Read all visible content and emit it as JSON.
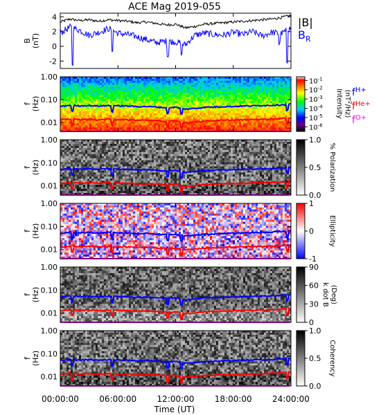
{
  "chart_data": [
    {
      "type": "line",
      "panel": "B",
      "title": "ACE Mag 2019-055",
      "ylabel": "B",
      "yunit": "(nT)",
      "ylim": [
        -3,
        4.5
      ],
      "yticks": [
        "4",
        "2",
        "0",
        "-2"
      ],
      "ytick_values": [
        4,
        2,
        0,
        -2
      ],
      "x": [
        0,
        1,
        2,
        3,
        4,
        5,
        6,
        7,
        8,
        9,
        10,
        11,
        12,
        13,
        14,
        15,
        16,
        17,
        18,
        19,
        20,
        21,
        22,
        23,
        24
      ],
      "series": [
        {
          "name": "|B|",
          "color": "#000000",
          "values": [
            3.3,
            3.7,
            3.5,
            3.6,
            3.4,
            3.6,
            3.5,
            3.4,
            3.2,
            3.3,
            3.1,
            2.9,
            3.0,
            2.5,
            2.7,
            3.0,
            3.1,
            3.2,
            3.3,
            3.4,
            3.5,
            3.6,
            3.7,
            3.9,
            4.2
          ]
        },
        {
          "name": "B",
          "subscript": "R",
          "color": "#0000ff",
          "values": [
            1.8,
            2.6,
            2.2,
            1.5,
            1.9,
            2.4,
            1.8,
            1.6,
            1.3,
            0.9,
            0.5,
            0.7,
            0.6,
            0.2,
            1.5,
            1.8,
            1.6,
            1.5,
            1.9,
            1.6,
            2.0,
            1.4,
            1.9,
            1.7,
            2.5
          ]
        }
      ],
      "dips": [
        {
          "x": 1.3,
          "value": -2.6
        },
        {
          "x": 5.4,
          "value": -0.8
        },
        {
          "x": 11.2,
          "value": -1.5
        },
        {
          "x": 12.6,
          "value": -1.2
        },
        {
          "x": 22.8,
          "value": 0.1
        },
        {
          "x": 23.6,
          "value": -2.3
        }
      ]
    },
    {
      "type": "heatmap",
      "panel": "Intensity",
      "ylabel": "f",
      "yunit": "(Hz)",
      "ylim": [
        0.004,
        1.0
      ],
      "yscale": "log",
      "yticks": [
        "1.00",
        "0.10",
        "0.01"
      ],
      "ytick_values": [
        1.0,
        0.1,
        0.01
      ],
      "colorbar": {
        "label": "Intensity",
        "unit_base": "(nT",
        "unit_exp": "2",
        "unit_tail": "/Hz)",
        "ticks": [
          {
            "mantissa": "10",
            "exp": "-1",
            "value": -1
          },
          {
            "mantissa": "10",
            "exp": "-2",
            "value": -2
          },
          {
            "mantissa": "10",
            "exp": "-3",
            "value": -3
          },
          {
            "mantissa": "10",
            "exp": "-4",
            "value": -4
          },
          {
            "mantissa": "10",
            "exp": "-5",
            "value": -5
          },
          {
            "mantissa": "10",
            "exp": "-6",
            "value": -6
          }
        ],
        "range": [
          -6.5,
          -0.6
        ],
        "colors": [
          "#000000",
          "#6b0080",
          "#0000ff",
          "#00c8ff",
          "#00ff00",
          "#ffff00",
          "#ff8000",
          "#ff0000",
          "#ffffff"
        ]
      }
    },
    {
      "type": "heatmap",
      "panel": "Polarization",
      "ylabel": "f",
      "yunit": "(Hz)",
      "ylim": [
        0.004,
        1.0
      ],
      "yscale": "log",
      "yticks": [
        "1.00",
        "0.10",
        "0.01"
      ],
      "ytick_values": [
        1.0,
        0.1,
        0.01
      ],
      "colorbar": {
        "label": "% Polarization",
        "ticks": [
          "1.0",
          "0.5",
          "0.0"
        ],
        "tick_values": [
          1.0,
          0.5,
          0.0
        ],
        "range": [
          0,
          1
        ],
        "colors": [
          "#ffffff",
          "#000000"
        ]
      }
    },
    {
      "type": "heatmap",
      "panel": "Ellipticity",
      "ylabel": "f",
      "yunit": "(Hz)",
      "ylim": [
        0.004,
        1.0
      ],
      "yscale": "log",
      "yticks": [
        "1.00",
        "0.10",
        "0.01"
      ],
      "ytick_values": [
        1.0,
        0.1,
        0.01
      ],
      "colorbar": {
        "label": "Ellipticity",
        "ticks": [
          "1",
          "0",
          "-1"
        ],
        "tick_values": [
          1,
          0,
          -1
        ],
        "range": [
          -1,
          1
        ],
        "colors": [
          "#0000ff",
          "#ffffff",
          "#ff0000"
        ]
      }
    },
    {
      "type": "heatmap",
      "panel": "k dot B",
      "ylabel": "f",
      "yunit": "(Hz)",
      "ylim": [
        0.004,
        1.0
      ],
      "yscale": "log",
      "yticks": [
        "1.00",
        "0.10",
        "0.01"
      ],
      "ytick_values": [
        1.0,
        0.1,
        0.01
      ],
      "colorbar": {
        "label": "k dot B",
        "unit": "(Deg)",
        "ticks": [
          "90",
          "60",
          "30",
          "0"
        ],
        "tick_values": [
          90,
          60,
          30,
          0
        ],
        "range": [
          0,
          90
        ],
        "colors": [
          "#ffffff",
          "#000000"
        ]
      }
    },
    {
      "type": "heatmap",
      "panel": "Coherency",
      "ylabel": "f",
      "yunit": "(Hz)",
      "ylim": [
        0.004,
        1.0
      ],
      "yscale": "log",
      "yticks": [
        "1.00",
        "0.10",
        "0.01"
      ],
      "ytick_values": [
        1.0,
        0.1,
        0.01
      ],
      "colorbar": {
        "label": "Coherency",
        "ticks": [
          "1.0",
          "0.5",
          "0.0"
        ],
        "tick_values": [
          1.0,
          0.5,
          0.0
        ],
        "range": [
          0,
          1
        ],
        "colors": [
          "#ffffff",
          "#000000"
        ]
      }
    }
  ],
  "gyrofrequency_lines": [
    {
      "name": "f",
      "subscript": "H+",
      "color": "#0000ff",
      "values": [
        0.05,
        0.056,
        0.053,
        0.055,
        0.052,
        0.055,
        0.053,
        0.052,
        0.049,
        0.05,
        0.047,
        0.044,
        0.046,
        0.038,
        0.041,
        0.046,
        0.047,
        0.049,
        0.05,
        0.052,
        0.053,
        0.055,
        0.056,
        0.059,
        0.064
      ]
    },
    {
      "name": "f",
      "subscript": "He+",
      "color": "#ff0000",
      "values": [
        0.0125,
        0.0141,
        0.0133,
        0.0137,
        0.0129,
        0.0137,
        0.0133,
        0.0129,
        0.0122,
        0.0125,
        0.0118,
        0.011,
        0.0114,
        0.0095,
        0.0103,
        0.0114,
        0.0118,
        0.0122,
        0.0125,
        0.0129,
        0.0133,
        0.0137,
        0.0141,
        0.0148,
        0.016
      ]
    },
    {
      "name": "f",
      "subscript": "O+",
      "color": "#ff00ff",
      "values": [
        0.0031,
        0.0035,
        0.0033,
        0.0034,
        0.0032,
        0.0034,
        0.0033,
        0.0032,
        0.0031,
        0.0031,
        0.0029,
        0.0028,
        0.0029,
        0.0024,
        0.0026,
        0.0029,
        0.0029,
        0.0031,
        0.0031,
        0.0032,
        0.0033,
        0.0034,
        0.0035,
        0.0037,
        0.004
      ]
    }
  ],
  "xaxis": {
    "label": "Time (UT)",
    "range_hours": [
      0,
      24
    ],
    "ticks": [
      {
        "label": "00:00:00",
        "hour": 0
      },
      {
        "label": "06:00:00",
        "hour": 6
      },
      {
        "label": "12:00:00",
        "hour": 12
      },
      {
        "label": "18:00:00",
        "hour": 18
      },
      {
        "label": "24:00:00",
        "hour": 24
      }
    ]
  },
  "colors": {
    "axis": "#000000",
    "blue": "#0000ff",
    "red": "#ff0000",
    "magenta": "#ff00ff",
    "grey_mid": "#777777"
  }
}
